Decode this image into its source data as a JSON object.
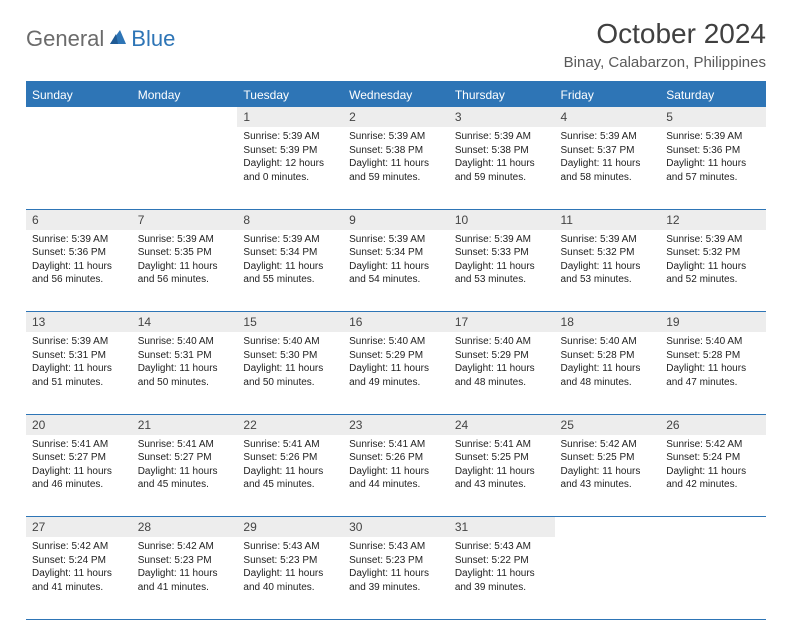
{
  "logo": {
    "general": "General",
    "blue": "Blue"
  },
  "title": {
    "month": "October 2024",
    "location": "Binay, Calabarzon, Philippines"
  },
  "colors": {
    "brand": "#2e75b6",
    "header_bg": "#2e75b6",
    "daynum_bg": "#ededed"
  },
  "day_headers": [
    "Sunday",
    "Monday",
    "Tuesday",
    "Wednesday",
    "Thursday",
    "Friday",
    "Saturday"
  ],
  "weeks": [
    [
      null,
      null,
      {
        "n": "1",
        "l1": "Sunrise: 5:39 AM",
        "l2": "Sunset: 5:39 PM",
        "l3": "Daylight: 12 hours and 0 minutes."
      },
      {
        "n": "2",
        "l1": "Sunrise: 5:39 AM",
        "l2": "Sunset: 5:38 PM",
        "l3": "Daylight: 11 hours and 59 minutes."
      },
      {
        "n": "3",
        "l1": "Sunrise: 5:39 AM",
        "l2": "Sunset: 5:38 PM",
        "l3": "Daylight: 11 hours and 59 minutes."
      },
      {
        "n": "4",
        "l1": "Sunrise: 5:39 AM",
        "l2": "Sunset: 5:37 PM",
        "l3": "Daylight: 11 hours and 58 minutes."
      },
      {
        "n": "5",
        "l1": "Sunrise: 5:39 AM",
        "l2": "Sunset: 5:36 PM",
        "l3": "Daylight: 11 hours and 57 minutes."
      }
    ],
    [
      {
        "n": "6",
        "l1": "Sunrise: 5:39 AM",
        "l2": "Sunset: 5:36 PM",
        "l3": "Daylight: 11 hours and 56 minutes."
      },
      {
        "n": "7",
        "l1": "Sunrise: 5:39 AM",
        "l2": "Sunset: 5:35 PM",
        "l3": "Daylight: 11 hours and 56 minutes."
      },
      {
        "n": "8",
        "l1": "Sunrise: 5:39 AM",
        "l2": "Sunset: 5:34 PM",
        "l3": "Daylight: 11 hours and 55 minutes."
      },
      {
        "n": "9",
        "l1": "Sunrise: 5:39 AM",
        "l2": "Sunset: 5:34 PM",
        "l3": "Daylight: 11 hours and 54 minutes."
      },
      {
        "n": "10",
        "l1": "Sunrise: 5:39 AM",
        "l2": "Sunset: 5:33 PM",
        "l3": "Daylight: 11 hours and 53 minutes."
      },
      {
        "n": "11",
        "l1": "Sunrise: 5:39 AM",
        "l2": "Sunset: 5:32 PM",
        "l3": "Daylight: 11 hours and 53 minutes."
      },
      {
        "n": "12",
        "l1": "Sunrise: 5:39 AM",
        "l2": "Sunset: 5:32 PM",
        "l3": "Daylight: 11 hours and 52 minutes."
      }
    ],
    [
      {
        "n": "13",
        "l1": "Sunrise: 5:39 AM",
        "l2": "Sunset: 5:31 PM",
        "l3": "Daylight: 11 hours and 51 minutes."
      },
      {
        "n": "14",
        "l1": "Sunrise: 5:40 AM",
        "l2": "Sunset: 5:31 PM",
        "l3": "Daylight: 11 hours and 50 minutes."
      },
      {
        "n": "15",
        "l1": "Sunrise: 5:40 AM",
        "l2": "Sunset: 5:30 PM",
        "l3": "Daylight: 11 hours and 50 minutes."
      },
      {
        "n": "16",
        "l1": "Sunrise: 5:40 AM",
        "l2": "Sunset: 5:29 PM",
        "l3": "Daylight: 11 hours and 49 minutes."
      },
      {
        "n": "17",
        "l1": "Sunrise: 5:40 AM",
        "l2": "Sunset: 5:29 PM",
        "l3": "Daylight: 11 hours and 48 minutes."
      },
      {
        "n": "18",
        "l1": "Sunrise: 5:40 AM",
        "l2": "Sunset: 5:28 PM",
        "l3": "Daylight: 11 hours and 48 minutes."
      },
      {
        "n": "19",
        "l1": "Sunrise: 5:40 AM",
        "l2": "Sunset: 5:28 PM",
        "l3": "Daylight: 11 hours and 47 minutes."
      }
    ],
    [
      {
        "n": "20",
        "l1": "Sunrise: 5:41 AM",
        "l2": "Sunset: 5:27 PM",
        "l3": "Daylight: 11 hours and 46 minutes."
      },
      {
        "n": "21",
        "l1": "Sunrise: 5:41 AM",
        "l2": "Sunset: 5:27 PM",
        "l3": "Daylight: 11 hours and 45 minutes."
      },
      {
        "n": "22",
        "l1": "Sunrise: 5:41 AM",
        "l2": "Sunset: 5:26 PM",
        "l3": "Daylight: 11 hours and 45 minutes."
      },
      {
        "n": "23",
        "l1": "Sunrise: 5:41 AM",
        "l2": "Sunset: 5:26 PM",
        "l3": "Daylight: 11 hours and 44 minutes."
      },
      {
        "n": "24",
        "l1": "Sunrise: 5:41 AM",
        "l2": "Sunset: 5:25 PM",
        "l3": "Daylight: 11 hours and 43 minutes."
      },
      {
        "n": "25",
        "l1": "Sunrise: 5:42 AM",
        "l2": "Sunset: 5:25 PM",
        "l3": "Daylight: 11 hours and 43 minutes."
      },
      {
        "n": "26",
        "l1": "Sunrise: 5:42 AM",
        "l2": "Sunset: 5:24 PM",
        "l3": "Daylight: 11 hours and 42 minutes."
      }
    ],
    [
      {
        "n": "27",
        "l1": "Sunrise: 5:42 AM",
        "l2": "Sunset: 5:24 PM",
        "l3": "Daylight: 11 hours and 41 minutes."
      },
      {
        "n": "28",
        "l1": "Sunrise: 5:42 AM",
        "l2": "Sunset: 5:23 PM",
        "l3": "Daylight: 11 hours and 41 minutes."
      },
      {
        "n": "29",
        "l1": "Sunrise: 5:43 AM",
        "l2": "Sunset: 5:23 PM",
        "l3": "Daylight: 11 hours and 40 minutes."
      },
      {
        "n": "30",
        "l1": "Sunrise: 5:43 AM",
        "l2": "Sunset: 5:23 PM",
        "l3": "Daylight: 11 hours and 39 minutes."
      },
      {
        "n": "31",
        "l1": "Sunrise: 5:43 AM",
        "l2": "Sunset: 5:22 PM",
        "l3": "Daylight: 11 hours and 39 minutes."
      },
      null,
      null
    ]
  ]
}
